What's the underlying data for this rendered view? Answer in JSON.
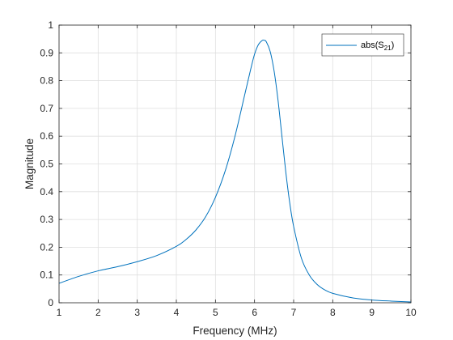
{
  "chart_data": {
    "type": "line",
    "title": "",
    "xlabel": "Frequency (MHz)",
    "ylabel": "Magnitude",
    "xlim": [
      1,
      10
    ],
    "ylim": [
      0,
      1
    ],
    "xticks": [
      1,
      2,
      3,
      4,
      5,
      6,
      7,
      8,
      9,
      10
    ],
    "yticks": [
      0,
      0.1,
      0.2,
      0.3,
      0.4,
      0.5,
      0.6,
      0.7,
      0.8,
      0.9,
      1
    ],
    "xtick_labels": [
      "1",
      "2",
      "3",
      "4",
      "5",
      "6",
      "7",
      "8",
      "9",
      "10"
    ],
    "ytick_labels": [
      "0",
      "0.1",
      "0.2",
      "0.3",
      "0.4",
      "0.5",
      "0.6",
      "0.7",
      "0.8",
      "0.9",
      "1"
    ],
    "grid": true,
    "legend_position": "top-right",
    "series": [
      {
        "name_prefix": "abs(S",
        "name_sub": "21",
        "name_suffix": ")",
        "color": "#0072bd",
        "x": [
          1.0,
          1.5,
          2.0,
          2.5,
          3.0,
          3.5,
          4.0,
          4.25,
          4.5,
          4.75,
          5.0,
          5.25,
          5.5,
          5.75,
          5.9,
          6.0,
          6.1,
          6.2,
          6.25,
          6.3,
          6.4,
          6.5,
          6.6,
          6.7,
          6.8,
          6.9,
          7.0,
          7.2,
          7.4,
          7.6,
          7.8,
          8.0,
          8.5,
          9.0,
          9.5,
          10.0
        ],
        "y": [
          0.07,
          0.095,
          0.115,
          0.13,
          0.148,
          0.17,
          0.203,
          0.228,
          0.262,
          0.31,
          0.38,
          0.475,
          0.6,
          0.75,
          0.84,
          0.895,
          0.93,
          0.945,
          0.945,
          0.94,
          0.905,
          0.835,
          0.73,
          0.6,
          0.47,
          0.36,
          0.275,
          0.16,
          0.1,
          0.066,
          0.046,
          0.034,
          0.018,
          0.01,
          0.006,
          0.003
        ]
      }
    ]
  }
}
